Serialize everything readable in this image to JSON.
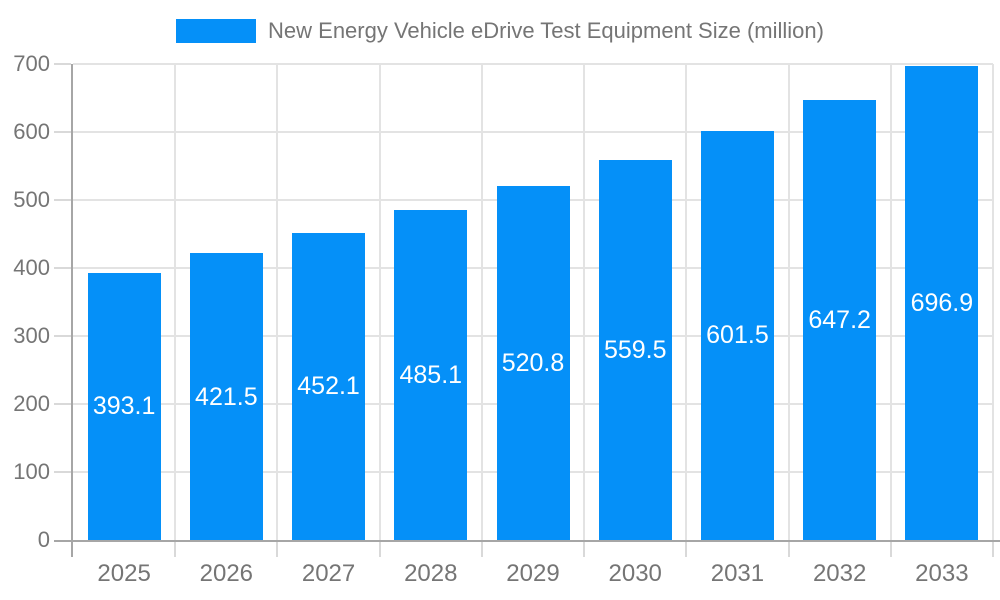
{
  "chart_data": {
    "type": "bar",
    "title": "New Energy Vehicle eDrive Test Equipment Size (million)",
    "legend": "New Energy Vehicle eDrive Test Equipment Size (million)",
    "legend_position": "top",
    "categories": [
      "2025",
      "2026",
      "2027",
      "2028",
      "2029",
      "2030",
      "2031",
      "2032",
      "2033"
    ],
    "values": [
      393.1,
      421.5,
      452.1,
      485.1,
      520.8,
      559.5,
      601.5,
      647.2,
      696.9
    ],
    "value_labels": [
      "393.1",
      "421.5",
      "452.1",
      "485.1",
      "520.8",
      "559.5",
      "601.5",
      "647.2",
      "696.9"
    ],
    "xlabel": "",
    "ylabel": "",
    "ylim": [
      0,
      700
    ],
    "ytick_step": 100,
    "ytick_labels": [
      "0",
      "100",
      "200",
      "300",
      "400",
      "500",
      "600",
      "700"
    ],
    "grid": true,
    "colors": {
      "bar": "#0590f8",
      "axis": "#a6a6a6",
      "grid": "#e3e3e3",
      "tick": "#d9d9d9",
      "label": "#757575",
      "value_label": "#ffffff",
      "background": "#ffffff"
    }
  }
}
